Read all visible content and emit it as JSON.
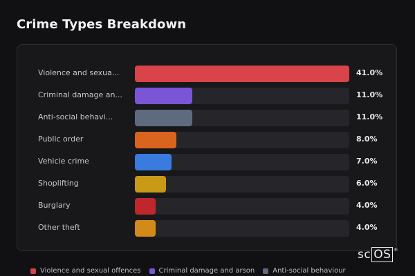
{
  "chart_data": {
    "type": "bar",
    "orientation": "horizontal",
    "title": "Crime Types Breakdown",
    "categories": [
      "Violence and sexua...",
      "Criminal damage an...",
      "Anti-social behavi...",
      "Public order",
      "Vehicle crime",
      "Shoplifting",
      "Burglary",
      "Other theft"
    ],
    "values": [
      41.0,
      11.0,
      11.0,
      8.0,
      7.0,
      6.0,
      4.0,
      4.0
    ],
    "value_labels": [
      "41.0%",
      "11.0%",
      "11.0%",
      "8.0%",
      "7.0%",
      "6.0%",
      "4.0%",
      "4.0%"
    ],
    "colors": [
      "#d9434a",
      "#7a55d6",
      "#5e6b7f",
      "#d9641e",
      "#3a7be0",
      "#c99a16",
      "#c0272d",
      "#d38a18"
    ],
    "xlim": [
      0,
      41
    ],
    "grid": false,
    "legend_position": "bottom",
    "legend": [
      {
        "label": "Violence and sexual offences",
        "color": "#d9434a"
      },
      {
        "label": "Criminal damage and arson",
        "color": "#7a55d6"
      },
      {
        "label": "Anti-social behaviour",
        "color": "#5e6b7f"
      }
    ]
  },
  "logo_text": "scOS"
}
